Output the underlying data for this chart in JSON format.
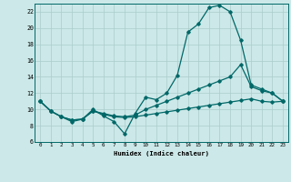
{
  "background_color": "#cce8e8",
  "grid_color": "#aacccc",
  "line_color": "#006868",
  "xlabel": "Humidex (Indice chaleur)",
  "xlim": [
    -0.5,
    23.5
  ],
  "ylim": [
    6,
    23
  ],
  "yticks": [
    6,
    8,
    10,
    12,
    14,
    16,
    18,
    20,
    22
  ],
  "xticks": [
    0,
    1,
    2,
    3,
    4,
    5,
    6,
    7,
    8,
    9,
    10,
    11,
    12,
    13,
    14,
    15,
    16,
    17,
    18,
    19,
    20,
    21,
    22,
    23
  ],
  "line1_x": [
    0,
    1,
    2,
    3,
    4,
    5,
    6,
    7,
    8,
    9,
    10,
    11,
    12,
    13,
    14,
    15,
    16,
    17,
    18,
    19,
    20,
    21,
    22,
    23
  ],
  "line1_y": [
    11.0,
    9.8,
    9.1,
    8.5,
    8.8,
    10.0,
    9.2,
    8.5,
    7.0,
    9.5,
    11.5,
    11.2,
    12.0,
    14.2,
    19.5,
    20.5,
    22.5,
    22.8,
    22.0,
    18.5,
    13.0,
    12.5,
    12.0,
    11.0
  ],
  "line2_x": [
    0,
    1,
    2,
    3,
    4,
    5,
    6,
    7,
    8,
    9,
    10,
    11,
    12,
    13,
    14,
    15,
    16,
    17,
    18,
    19,
    20,
    21,
    22,
    23
  ],
  "line2_y": [
    11.0,
    9.8,
    9.1,
    8.7,
    8.8,
    9.8,
    9.5,
    9.2,
    9.1,
    9.3,
    10.0,
    10.5,
    11.0,
    11.5,
    12.0,
    12.5,
    13.0,
    13.5,
    14.0,
    15.5,
    12.8,
    12.3,
    12.0,
    11.0
  ],
  "line3_x": [
    0,
    1,
    2,
    3,
    4,
    5,
    6,
    7,
    8,
    9,
    10,
    11,
    12,
    13,
    14,
    15,
    16,
    17,
    18,
    19,
    20,
    21,
    22,
    23
  ],
  "line3_y": [
    11.0,
    9.8,
    9.1,
    8.7,
    8.8,
    9.8,
    9.4,
    9.1,
    9.0,
    9.1,
    9.3,
    9.5,
    9.7,
    9.9,
    10.1,
    10.3,
    10.5,
    10.7,
    10.9,
    11.1,
    11.3,
    11.0,
    10.9,
    11.0
  ]
}
